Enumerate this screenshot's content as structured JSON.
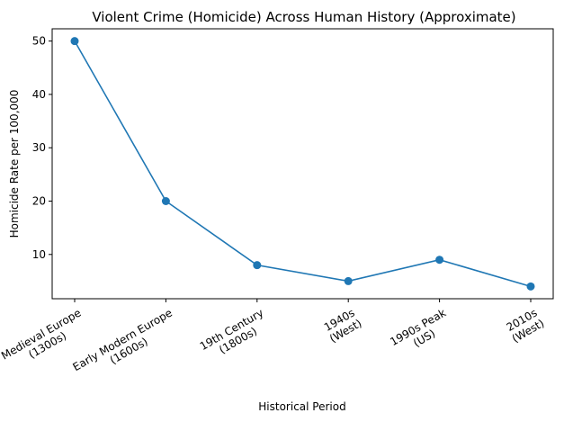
{
  "chart_data": {
    "type": "line",
    "title": "Violent Crime (Homicide) Across Human History (Approximate)",
    "xlabel": "Historical Period",
    "ylabel": "Homicide Rate per 100,000",
    "categories": [
      [
        "Medieval Europe",
        "(1300s)"
      ],
      [
        "Early Modern Europe",
        "(1600s)"
      ],
      [
        "19th Century",
        "(1800s)"
      ],
      [
        "1940s",
        "(West)"
      ],
      [
        "1990s Peak",
        "(US)"
      ],
      [
        "2010s",
        "(West)"
      ]
    ],
    "series": [
      {
        "values": [
          50,
          20,
          8,
          5,
          9,
          4
        ],
        "color": "#1f77b4",
        "marker": "circle"
      }
    ],
    "yticks": [
      10,
      20,
      30,
      40,
      50
    ],
    "ylim": [
      1.7,
      52.3
    ],
    "grid": false,
    "legend": false
  }
}
